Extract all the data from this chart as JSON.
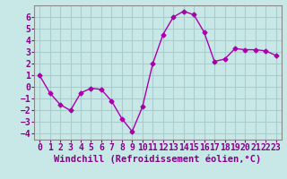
{
  "x": [
    0,
    1,
    2,
    3,
    4,
    5,
    6,
    7,
    8,
    9,
    10,
    11,
    12,
    13,
    14,
    15,
    16,
    17,
    18,
    19,
    20,
    21,
    22,
    23
  ],
  "y": [
    1.0,
    -0.5,
    -1.5,
    -2.0,
    -0.5,
    -0.1,
    -0.2,
    -1.2,
    -2.7,
    -3.8,
    -1.7,
    2.0,
    4.5,
    6.0,
    6.5,
    6.2,
    4.7,
    2.2,
    2.4,
    3.3,
    3.2,
    3.2,
    3.1,
    2.7
  ],
  "line_color": "#aa00aa",
  "marker": "D",
  "marker_size": 2.5,
  "bg_color": "#c8e8e8",
  "grid_color": "#aacccc",
  "xlabel": "Windchill (Refroidissement éolien,°C)",
  "xlabel_color": "#880088",
  "xlabel_fontsize": 7.5,
  "tick_fontsize": 7,
  "tick_color": "#880088",
  "xlim": [
    -0.5,
    23.5
  ],
  "ylim": [
    -4.5,
    7.0
  ],
  "yticks": [
    -4,
    -3,
    -2,
    -1,
    0,
    1,
    2,
    3,
    4,
    5,
    6
  ],
  "xticks": [
    0,
    1,
    2,
    3,
    4,
    5,
    6,
    7,
    8,
    9,
    10,
    11,
    12,
    13,
    14,
    15,
    16,
    17,
    18,
    19,
    20,
    21,
    22,
    23
  ]
}
